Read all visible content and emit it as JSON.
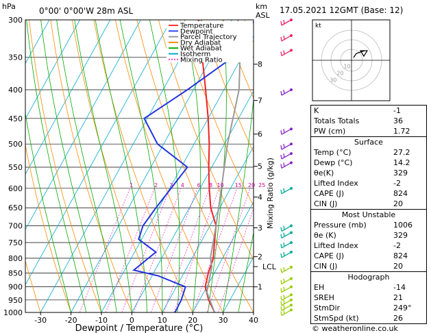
{
  "header": {
    "location": "0°00' 0°00'W  28m  ASL",
    "datetime": "17.05.2021  12GMT  (Base: 12)",
    "pressure_unit": "hPa",
    "height_unit": "km",
    "height_unit2": "ASL"
  },
  "footer": {
    "credit": "© weatheronline.co.uk"
  },
  "chart_data": {
    "type": "line",
    "xlabel": "Dewpoint / Temperature (°C)",
    "ylabel_right": "Mixing Ratio (g/kg)",
    "x_ticks": [
      -30,
      -20,
      -10,
      0,
      10,
      20,
      30,
      40
    ],
    "y_ticks": [
      300,
      350,
      400,
      450,
      500,
      550,
      600,
      650,
      700,
      750,
      800,
      850,
      900,
      950,
      1000
    ],
    "xlim": [
      -35,
      40
    ],
    "ylim": [
      1000,
      300
    ],
    "y_scale": "log",
    "km_ticks": [
      {
        "label": "8",
        "p": 360
      },
      {
        "label": "7",
        "p": 418
      },
      {
        "label": "6",
        "p": 480
      },
      {
        "label": "5",
        "p": 548
      },
      {
        "label": "4",
        "p": 622
      },
      {
        "label": "3",
        "p": 706
      },
      {
        "label": "2",
        "p": 795
      },
      {
        "label": "LCL",
        "p": 828
      },
      {
        "label": "1",
        "p": 900
      }
    ],
    "mixing_ratio_labels": [
      "1",
      "2",
      "3",
      "4",
      "6",
      "8",
      "10",
      "15",
      "20",
      "25"
    ],
    "legend": [
      "Temperature",
      "Dewpoint",
      "Parcel Trajectory",
      "Dry Adiabat",
      "Wet Adiabat",
      "Isotherm",
      "Mixing Ratio"
    ],
    "legend_colors": [
      "#ff3333",
      "#3344ee",
      "#999999",
      "#ff8800",
      "#00aa00",
      "#00aacc",
      "#ff33cc"
    ],
    "series": [
      {
        "name": "Temperature",
        "color": "#ee2222",
        "points": [
          [
            27.2,
            1000
          ],
          [
            23,
            950
          ],
          [
            19.5,
            900
          ],
          [
            18,
            850
          ],
          [
            17,
            800
          ],
          [
            14.5,
            750
          ],
          [
            12,
            700
          ],
          [
            7,
            650
          ],
          [
            3,
            600
          ],
          [
            -1,
            550
          ],
          [
            -5,
            500
          ],
          [
            -10,
            450
          ],
          [
            -16,
            400
          ],
          [
            -23,
            350
          ],
          [
            -31,
            300
          ]
        ]
      },
      {
        "name": "Dewpoint",
        "color": "#2233dd",
        "points": [
          [
            14.2,
            1000
          ],
          [
            14,
            950
          ],
          [
            13,
            900
          ],
          [
            2,
            860
          ],
          [
            -7,
            840
          ],
          [
            -3,
            780
          ],
          [
            -11,
            740
          ],
          [
            -12,
            700
          ],
          [
            -11,
            650
          ],
          [
            -8,
            550
          ],
          [
            -22,
            500
          ],
          [
            -31,
            450
          ],
          [
            -22,
            400
          ],
          [
            -13,
            350
          ],
          [
            -18,
            330
          ],
          [
            -12,
            300
          ]
        ]
      },
      {
        "name": "Parcel Trajectory",
        "color": "#999999",
        "points": [
          [
            27.2,
            1000
          ],
          [
            21,
            920
          ],
          [
            18,
            828
          ],
          [
            16,
            800
          ],
          [
            12,
            700
          ],
          [
            7,
            600
          ],
          [
            1,
            500
          ],
          [
            -5,
            400
          ],
          [
            -13,
            330
          ],
          [
            -18,
            300
          ]
        ]
      }
    ]
  },
  "hodograph": {
    "unit_label": "kt",
    "ring_labels": [
      "10",
      "20",
      "30"
    ]
  },
  "indices": {
    "rows": [
      {
        "k": "K",
        "v": "-1"
      },
      {
        "k": "Totals Totals",
        "v": "36"
      },
      {
        "k": "PW (cm)",
        "v": "1.72"
      }
    ]
  },
  "surface": {
    "title": "Surface",
    "rows": [
      {
        "k": "Temp (°C)",
        "v": "27.2"
      },
      {
        "k": "Dewp (°C)",
        "v": "14.2"
      },
      {
        "k": "θe(K)",
        "v": "329"
      },
      {
        "k": "Lifted Index",
        "v": "-2"
      },
      {
        "k": "CAPE (J)",
        "v": "824"
      },
      {
        "k": "CIN (J)",
        "v": "20"
      }
    ]
  },
  "unstable": {
    "title": "Most Unstable",
    "rows": [
      {
        "k": "Pressure (mb)",
        "v": "1006"
      },
      {
        "k": "θe (K)",
        "v": "329"
      },
      {
        "k": "Lifted Index",
        "v": "-2"
      },
      {
        "k": "CAPE (J)",
        "v": "824"
      },
      {
        "k": "CIN (J)",
        "v": "20"
      }
    ]
  },
  "hodo_table": {
    "title": "Hodograph",
    "rows": [
      {
        "k": "EH",
        "v": "-14"
      },
      {
        "k": "SREH",
        "v": "21"
      },
      {
        "k": "StmDir",
        "v": "249°"
      },
      {
        "k": "StmSpd (kt)",
        "v": "26"
      }
    ]
  }
}
